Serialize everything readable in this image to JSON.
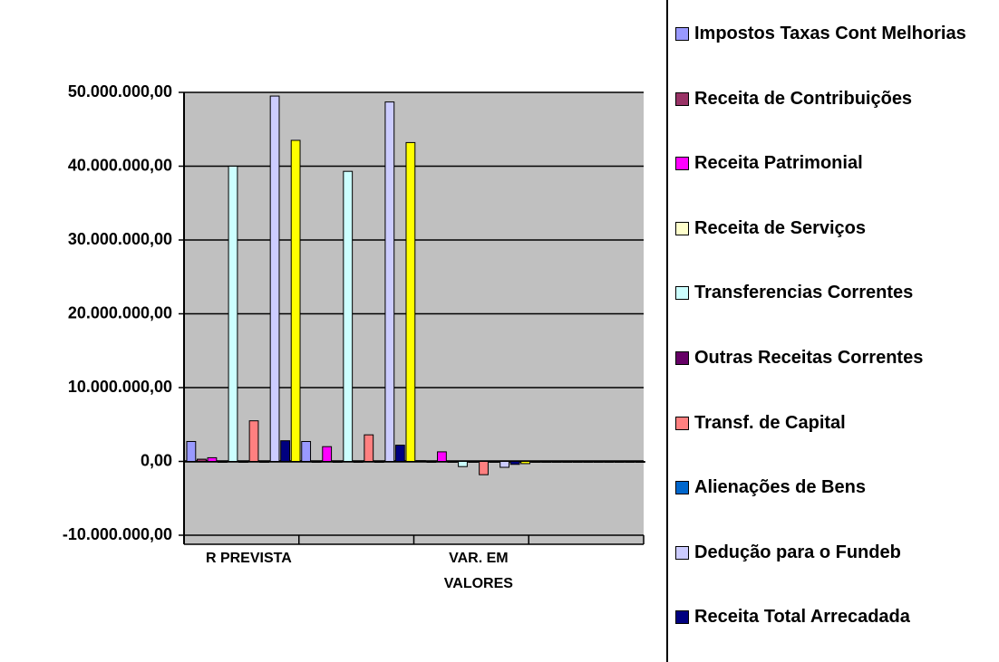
{
  "chart_data": {
    "type": "bar",
    "categories": [
      "R PREVISTA",
      null,
      "VAR. EM VALORES",
      null
    ],
    "ylim": [
      -10000000,
      50000000
    ],
    "yticks": [
      {
        "value": -10000000,
        "label": "-10.000.000,00"
      },
      {
        "value": 0,
        "label": "0,00"
      },
      {
        "value": 10000000,
        "label": "10.000.000,00"
      },
      {
        "value": 20000000,
        "label": "20.000.000,00"
      },
      {
        "value": 30000000,
        "label": "30.000.000,00"
      },
      {
        "value": 40000000,
        "label": "40.000.000,00"
      },
      {
        "value": 50000000,
        "label": "50.000.000,00"
      }
    ],
    "grid": true,
    "legend": "right",
    "series": [
      {
        "name": "Impostos Taxas Cont Melhorias",
        "color": "#9999ff",
        "values": [
          2700000,
          2700000,
          100000,
          0
        ]
      },
      {
        "name": "Receita de Contribuições",
        "color": "#993366",
        "values": [
          300000,
          0,
          0,
          0
        ]
      },
      {
        "name": "Receita Patrimonial",
        "color": "#ff00ff",
        "values": [
          500000,
          2000000,
          1300000,
          0
        ]
      },
      {
        "name": "Receita de Serviços",
        "color": "#ffffcc",
        "values": [
          0,
          0,
          0,
          0
        ]
      },
      {
        "name": "Transferencias Correntes",
        "color": "#ccffff",
        "values": [
          40000000,
          39300000,
          -700000,
          0
        ]
      },
      {
        "name": "Outras Receitas Correntes",
        "color": "#660066",
        "values": [
          0,
          0,
          0,
          0
        ]
      },
      {
        "name": "Transf.  de Capital",
        "color": "#ff8080",
        "values": [
          5500000,
          3600000,
          -1800000,
          0
        ]
      },
      {
        "name": "Alienações de Bens",
        "color": "#0066cc",
        "values": [
          0,
          0,
          0,
          0
        ]
      },
      {
        "name": "Dedução para o Fundeb",
        "color": "#ccccff",
        "values": [
          49500000,
          48700000,
          -800000,
          0
        ]
      },
      {
        "name": "Receita Total Arrecadada",
        "color": "#000080",
        "values": [
          2800000,
          2200000,
          -400000,
          0
        ]
      },
      {
        "color": "#ffff00",
        "values": [
          43500000,
          43200000,
          -300000,
          0
        ]
      }
    ]
  }
}
